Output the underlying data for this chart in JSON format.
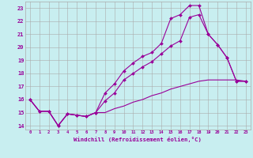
{
  "xlabel": "Windchill (Refroidissement éolien,°C)",
  "background_color": "#c8eef0",
  "line_color": "#990099",
  "xlim": [
    -0.5,
    23.5
  ],
  "ylim": [
    13.7,
    23.5
  ],
  "yticks": [
    14,
    15,
    16,
    17,
    18,
    19,
    20,
    21,
    22,
    23
  ],
  "xticks": [
    0,
    1,
    2,
    3,
    4,
    5,
    6,
    7,
    8,
    9,
    10,
    11,
    12,
    13,
    14,
    15,
    16,
    17,
    18,
    19,
    20,
    21,
    22,
    23
  ],
  "line1_x": [
    0,
    1,
    2,
    3,
    4,
    5,
    6,
    7,
    8,
    9,
    10,
    11,
    12,
    13,
    14,
    15,
    16,
    17,
    18,
    19,
    20,
    21,
    22,
    23
  ],
  "line1_y": [
    16.0,
    15.1,
    15.1,
    14.0,
    14.9,
    14.8,
    14.7,
    15.0,
    15.9,
    16.5,
    17.5,
    18.0,
    18.5,
    18.9,
    19.5,
    20.1,
    20.5,
    22.3,
    22.5,
    21.0,
    20.2,
    19.2,
    17.4,
    17.4
  ],
  "line2_x": [
    0,
    1,
    2,
    3,
    4,
    5,
    6,
    7,
    8,
    9,
    10,
    11,
    12,
    13,
    14,
    15,
    16,
    17,
    18,
    19,
    20,
    21,
    22,
    23
  ],
  "line2_y": [
    16.0,
    15.1,
    15.1,
    14.0,
    14.9,
    14.8,
    14.7,
    15.0,
    16.5,
    17.2,
    18.2,
    18.8,
    19.3,
    19.6,
    20.3,
    22.2,
    22.5,
    23.2,
    23.2,
    21.0,
    20.2,
    19.2,
    17.4,
    17.4
  ],
  "line3_x": [
    0,
    1,
    2,
    3,
    4,
    5,
    6,
    7,
    8,
    9,
    10,
    11,
    12,
    13,
    14,
    15,
    16,
    17,
    18,
    19,
    20,
    21,
    22,
    23
  ],
  "line3_y": [
    16.0,
    15.1,
    15.1,
    14.0,
    14.9,
    14.8,
    14.7,
    15.0,
    15.0,
    15.3,
    15.5,
    15.8,
    16.0,
    16.3,
    16.5,
    16.8,
    17.0,
    17.2,
    17.4,
    17.5,
    17.5,
    17.5,
    17.5,
    17.4
  ]
}
